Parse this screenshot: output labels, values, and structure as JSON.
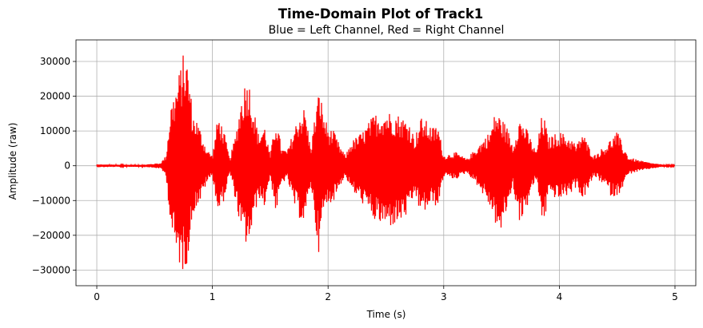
{
  "chart_data": {
    "type": "line",
    "title": "Time-Domain Plot of Track1",
    "subtitle": "Blue = Left Channel, Red = Right Channel",
    "xlabel": "Time (s)",
    "ylabel": "Amplitude (raw)",
    "xlim": [
      -0.18,
      5.18
    ],
    "ylim": [
      -34500,
      36200
    ],
    "x_ticks": [
      0,
      1,
      2,
      3,
      4,
      5
    ],
    "y_ticks": [
      -30000,
      -20000,
      -10000,
      0,
      10000,
      20000,
      30000
    ],
    "grid": true,
    "series": [
      {
        "color": "#ff0000",
        "x": [
          0,
          0.2,
          0.4,
          0.55,
          0.6,
          0.64,
          0.68,
          0.72,
          0.75,
          0.78,
          0.8,
          0.83,
          0.86,
          0.9,
          0.95,
          1.0,
          1.05,
          1.1,
          1.15,
          1.2,
          1.25,
          1.28,
          1.31,
          1.35,
          1.4,
          1.45,
          1.5,
          1.55,
          1.6,
          1.65,
          1.7,
          1.75,
          1.8,
          1.85,
          1.9,
          1.93,
          1.95,
          2.0,
          2.05,
          2.1,
          2.15,
          2.2,
          2.3,
          2.4,
          2.5,
          2.6,
          2.7,
          2.75,
          2.8,
          2.85,
          2.9,
          2.95,
          3.0,
          3.1,
          3.2,
          3.3,
          3.4,
          3.45,
          3.5,
          3.55,
          3.6,
          3.65,
          3.7,
          3.75,
          3.8,
          3.85,
          3.88,
          3.9,
          4.0,
          4.1,
          4.15,
          4.2,
          4.25,
          4.3,
          4.4,
          4.45,
          4.5,
          4.55,
          4.6,
          4.7,
          4.8,
          4.9,
          5.0
        ],
        "upper": [
          400,
          300,
          300,
          800,
          3000,
          18000,
          22000,
          28000,
          32500,
          31000,
          26000,
          15000,
          14000,
          10000,
          5000,
          3000,
          15000,
          10000,
          2000,
          9000,
          20000,
          24000,
          26000,
          18000,
          9000,
          12000,
          3000,
          14000,
          5000,
          4500,
          10000,
          15000,
          17000,
          5000,
          18000,
          23000,
          17000,
          11000,
          10000,
          6000,
          3000,
          7000,
          10000,
          15000,
          16000,
          15000,
          13000,
          8000,
          14000,
          13000,
          11000,
          12000,
          3000,
          4000,
          2000,
          6000,
          10000,
          16000,
          14000,
          11000,
          6000,
          14000,
          12000,
          8000,
          4000,
          15000,
          13000,
          8000,
          10000,
          8000,
          6000,
          10000,
          6000,
          3000,
          6000,
          8000,
          10000,
          6000,
          2500,
          1500,
          800,
          300,
          200
        ],
        "lower": [
          -400,
          -300,
          -300,
          -800,
          -3000,
          -18000,
          -26000,
          -29000,
          -31000,
          -28000,
          -24000,
          -14000,
          -12000,
          -10000,
          -5000,
          -3000,
          -14000,
          -10000,
          -2000,
          -10000,
          -20000,
          -22000,
          -24000,
          -17000,
          -9000,
          -12000,
          -3000,
          -14000,
          -5000,
          -4000,
          -11000,
          -15000,
          -17000,
          -5000,
          -20000,
          -27500,
          -15000,
          -11000,
          -10000,
          -6000,
          -3000,
          -7000,
          -11000,
          -16000,
          -18000,
          -17000,
          -14000,
          -8000,
          -14000,
          -13000,
          -11000,
          -12000,
          -3000,
          -4000,
          -2000,
          -6000,
          -12000,
          -17000,
          -20000,
          -12000,
          -6000,
          -16000,
          -15000,
          -8000,
          -4000,
          -16000,
          -15000,
          -8000,
          -10000,
          -8000,
          -6000,
          -10000,
          -7000,
          -3000,
          -6000,
          -9000,
          -9000,
          -6000,
          -2500,
          -1500,
          -800,
          -300,
          -200
        ]
      }
    ]
  }
}
